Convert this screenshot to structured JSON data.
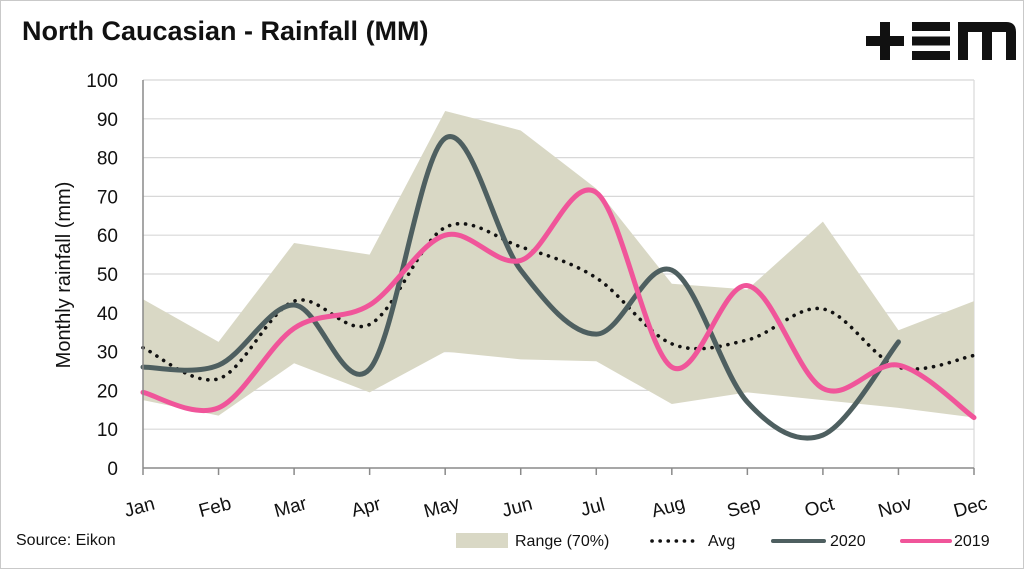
{
  "header": {
    "title": "North Caucasian - Rainfall (MM)",
    "logo_text": "+EM"
  },
  "footer": {
    "source": "Source: Eikon"
  },
  "colors": {
    "range": "#d9d8c5",
    "avg": "#111111",
    "s2020": "#4e5f60",
    "s2019": "#f0559a",
    "grid": "#d8d8d8",
    "axis": "#8a8a8a"
  },
  "chart_data": {
    "type": "line",
    "title": "North Caucasian - Rainfall (MM)",
    "xlabel": "",
    "ylabel": "Monthly rainfall (mm)",
    "ylim": [
      0,
      100
    ],
    "yticks": [
      0,
      10,
      20,
      30,
      40,
      50,
      60,
      70,
      80,
      90,
      100
    ],
    "grid": true,
    "legend_position": "bottom",
    "categories": [
      "Jan",
      "Feb",
      "Mar",
      "Apr",
      "May",
      "Jun",
      "Jul",
      "Aug",
      "Sep",
      "Oct",
      "Nov",
      "Dec"
    ],
    "range": {
      "name": "Range (70%)",
      "upper": [
        43.5,
        32.5,
        58,
        55,
        92,
        87,
        72,
        47.5,
        46,
        63.5,
        35.5,
        43
      ],
      "lower": [
        17.5,
        13.5,
        27,
        19.5,
        30,
        28,
        27.5,
        16.5,
        19.5,
        17.5,
        15.5,
        13
      ]
    },
    "series": [
      {
        "name": "Avg",
        "style": "dotted",
        "values": [
          31,
          23,
          43,
          37,
          62,
          57,
          49,
          32,
          33,
          41,
          26,
          29
        ]
      },
      {
        "name": "2020",
        "style": "solid",
        "values": [
          26,
          26.5,
          42,
          25.5,
          85,
          51,
          34.5,
          51,
          17,
          8.5,
          32.5,
          null
        ]
      },
      {
        "name": "2019",
        "style": "solid",
        "values": [
          19.5,
          15.5,
          36,
          42,
          60,
          53.5,
          71,
          26,
          47,
          20.5,
          26.5,
          13
        ]
      }
    ]
  }
}
